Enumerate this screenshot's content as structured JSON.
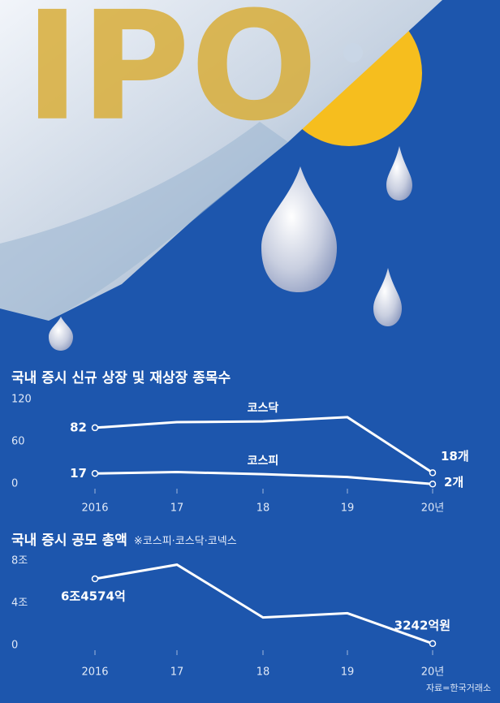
{
  "illustration_text": "IPO",
  "source": "자료=한국거래소",
  "chart_data": [
    {
      "type": "line",
      "title": "국내 증시 신규 상장 및 재상장 종목수",
      "categories": [
        "2016",
        "17",
        "18",
        "19",
        "20년"
      ],
      "series": [
        {
          "name": "코스닥",
          "color": "#ffffff",
          "values": [
            82,
            90,
            91,
            97,
            18
          ],
          "value_labels": [
            "82",
            null,
            null,
            null,
            "18개"
          ]
        },
        {
          "name": "코스피",
          "color": "#ffffff",
          "values": [
            17,
            19,
            16,
            12,
            2
          ],
          "value_labels": [
            "17",
            null,
            null,
            null,
            "2개"
          ]
        }
      ],
      "ylim": [
        0,
        120
      ],
      "yticks": [
        0,
        60,
        120
      ],
      "grid": false
    },
    {
      "type": "line",
      "title": "국내 증시 공모 총액",
      "subtitle": "※코스피·코스닥·코넥스",
      "categories": [
        "2016",
        "17",
        "18",
        "19",
        "20년"
      ],
      "series": [
        {
          "name": null,
          "color": "#ffffff",
          "values": [
            6.4574,
            7.8,
            2.8,
            3.2,
            0.3242
          ],
          "value_labels": [
            "6조4574억",
            null,
            null,
            null,
            "3242억원"
          ]
        }
      ],
      "ylim": [
        0,
        8
      ],
      "yticks": [
        0,
        {
          "value": 4,
          "label": "4조"
        },
        {
          "value": 8,
          "label": "8조"
        }
      ],
      "grid": false
    }
  ]
}
